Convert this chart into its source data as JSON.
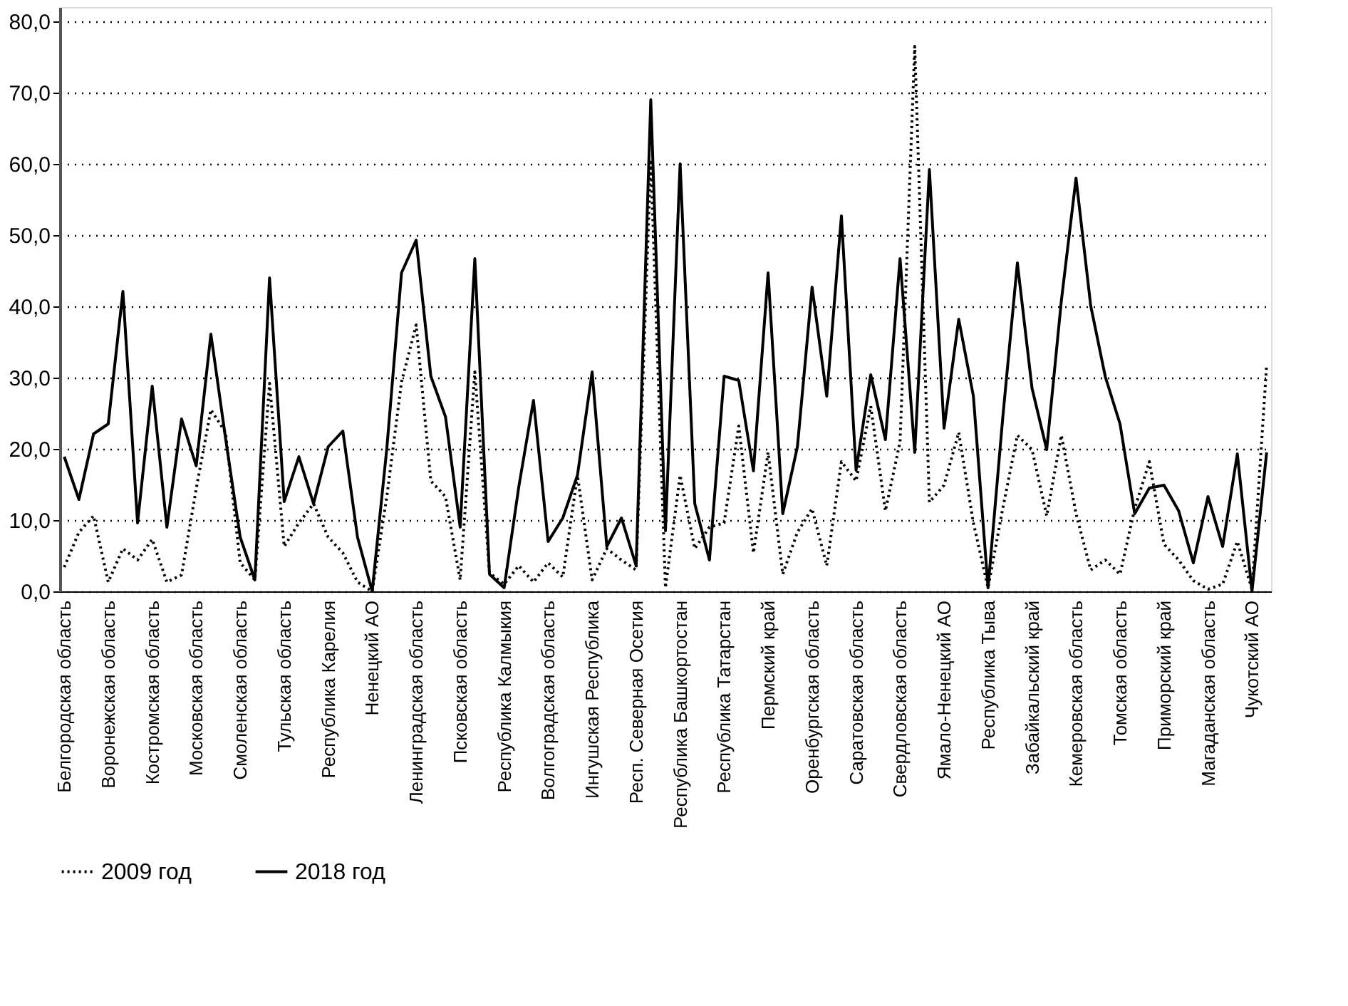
{
  "chart_data": {
    "type": "line",
    "categories": [
      "Белгородская область",
      null,
      null,
      "Воронежская область",
      null,
      null,
      "Костромская область",
      null,
      null,
      "Московская область",
      null,
      null,
      "Смоленская область",
      null,
      null,
      "Тульская область",
      null,
      null,
      "Республика Карелия",
      null,
      null,
      "Ненецкий АО",
      null,
      null,
      "Ленинградская область",
      null,
      null,
      "Псковская область",
      null,
      null,
      "Республика Калмыкия",
      null,
      null,
      "Волгоградская область",
      null,
      null,
      "Ингушская Республика",
      null,
      null,
      "Респ. Северная Осетия",
      null,
      null,
      "Республика Башкортостан",
      null,
      null,
      "Республика Татарстан",
      null,
      null,
      "Пермский край",
      null,
      null,
      "Оренбургская область",
      null,
      null,
      "Саратовская область",
      null,
      null,
      "Свердловская область",
      null,
      null,
      "Ямало-Ненецкий АО",
      null,
      null,
      "Республика Тыва",
      null,
      null,
      "Забайкальский край",
      null,
      null,
      "Кемеровская область",
      null,
      null,
      "Томская область",
      null,
      null,
      "Приморский край",
      null,
      null,
      "Магаданская область",
      null,
      null,
      "Чукотский АО",
      null
    ],
    "series": [
      {
        "name": "2009 год",
        "color": "#000000",
        "line_style": "dotted",
        "values": [
          3.4,
          8.3,
          10.6,
          1.3,
          6.0,
          4.4,
          7.3,
          1.3,
          2.3,
          14.4,
          25.5,
          22.3,
          4.0,
          1.6,
          29.2,
          6.3,
          9.6,
          12.3,
          7.6,
          5.4,
          1.3,
          0,
          13.3,
          29.4,
          37.4,
          15.5,
          13.3,
          1.6,
          30.8,
          2.6,
          1.0,
          3.6,
          1.3,
          4.0,
          2.0,
          16.3,
          1.6,
          6.0,
          4.4,
          3.0,
          60.6,
          0.5,
          16.3,
          6.0,
          9.0,
          9.6,
          23.2,
          5.4,
          19.5,
          2.4,
          8.3,
          11.6,
          3.6,
          18.2,
          15.5,
          26.0,
          11.3,
          21.0,
          76.5,
          12.5,
          14.9,
          22.3,
          9.6,
          0.5,
          11.6,
          21.9,
          19.9,
          10.6,
          21.9,
          10.9,
          3.0,
          4.4,
          2.4,
          11.6,
          18.2,
          6.6,
          4.4,
          1.5,
          0.3,
          1.0,
          7.0,
          0.3,
          31.8
        ]
      },
      {
        "name": "2018 год",
        "color": "#000000",
        "line_style": "solid",
        "values": [
          18.9,
          12.9,
          22.1,
          23.5,
          42.1,
          9.6,
          28.8,
          9.0,
          24.2,
          17.6,
          36.1,
          21.5,
          7.6,
          1.6,
          44.0,
          12.6,
          18.9,
          12.3,
          20.3,
          22.5,
          7.6,
          0,
          20.1,
          44.7,
          49.3,
          30.2,
          24.5,
          9.0,
          46.7,
          2.4,
          0.5,
          14.7,
          26.8,
          7.0,
          10.3,
          16.3,
          30.8,
          6.3,
          10.3,
          3.6,
          69.0,
          8.5,
          60.0,
          12.3,
          4.4,
          30.2,
          29.6,
          16.9,
          44.7,
          10.9,
          20.3,
          42.7,
          27.4,
          52.7,
          17.0,
          30.4,
          21.3,
          46.7,
          19.5,
          59.2,
          22.9,
          38.2,
          27.4,
          0.5,
          24.3,
          46.1,
          28.5,
          19.9,
          40.8,
          58.0,
          40.1,
          30.1,
          23.5,
          10.9,
          14.5,
          14.9,
          11.3,
          4.0,
          13.3,
          6.3,
          19.3,
          0,
          19.5
        ]
      }
    ],
    "ylim": [
      0,
      82
    ],
    "yticks": [
      {
        "value": 0,
        "label": "0,0"
      },
      {
        "value": 10,
        "label": "10,0"
      },
      {
        "value": 20,
        "label": "20,0"
      },
      {
        "value": 30,
        "label": "30,0"
      },
      {
        "value": 40,
        "label": "40,0"
      },
      {
        "value": 50,
        "label": "50,0"
      },
      {
        "value": 60,
        "label": "60,0"
      },
      {
        "value": 70,
        "label": "70,0"
      },
      {
        "value": 80,
        "label": "80,0"
      }
    ],
    "grid": "y",
    "legend": "bottom",
    "marker": "none"
  }
}
